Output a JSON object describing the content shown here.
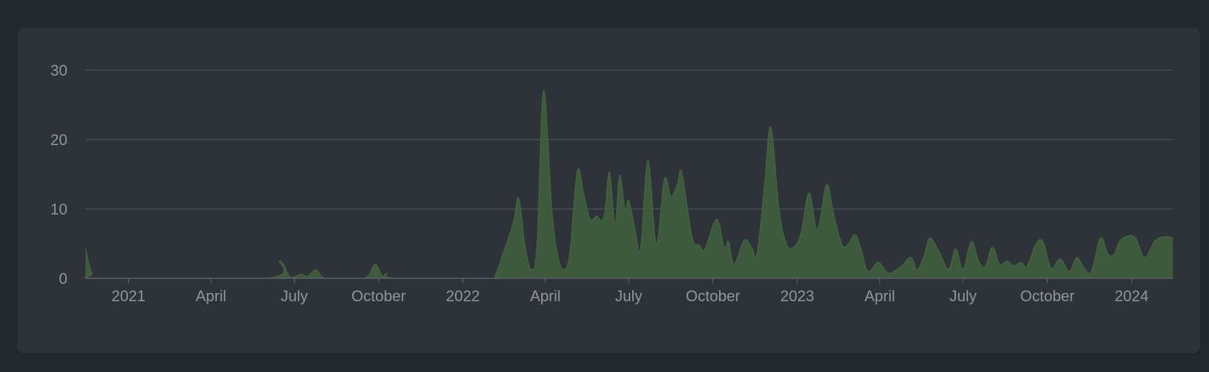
{
  "theme": {
    "page_background": "#22262d",
    "card_background": "#2e333a",
    "area_color": "#3d5a3c",
    "grid_color": "#4a5057",
    "label_color": "#8f969e"
  },
  "chart_data": {
    "type": "area",
    "title": "",
    "xlabel": "",
    "ylabel": "",
    "ylim": [
      0,
      30
    ],
    "xlim": [
      "2020-11-15",
      "2024-02-15"
    ],
    "y_ticks": [
      "0",
      "10",
      "20",
      "30"
    ],
    "x_ticks": [
      {
        "label": "2021",
        "date": "2021-01-01"
      },
      {
        "label": "April",
        "date": "2021-04-01"
      },
      {
        "label": "July",
        "date": "2021-07-01"
      },
      {
        "label": "October",
        "date": "2021-10-01"
      },
      {
        "label": "2022",
        "date": "2022-01-01"
      },
      {
        "label": "April",
        "date": "2022-04-01"
      },
      {
        "label": "July",
        "date": "2022-07-01"
      },
      {
        "label": "October",
        "date": "2022-10-01"
      },
      {
        "label": "2023",
        "date": "2023-01-01"
      },
      {
        "label": "April",
        "date": "2023-04-01"
      },
      {
        "label": "July",
        "date": "2023-07-01"
      },
      {
        "label": "October",
        "date": "2023-10-01"
      },
      {
        "label": "2024",
        "date": "2024-01-01"
      }
    ],
    "grid": true,
    "legend": "none",
    "series": [
      {
        "points": [
          [
            "2020-11-15",
            4.3
          ],
          [
            "2020-11-22",
            0.8
          ],
          [
            "2020-12-01",
            0
          ],
          [
            "2021-06-01",
            0
          ],
          [
            "2021-06-15",
            2.5
          ],
          [
            "2021-06-27",
            0.1
          ],
          [
            "2021-07-08",
            0.6
          ],
          [
            "2021-07-15",
            0.3
          ],
          [
            "2021-07-25",
            1.2
          ],
          [
            "2021-08-05",
            0
          ],
          [
            "2021-09-15",
            0
          ],
          [
            "2021-09-27",
            2.0
          ],
          [
            "2021-10-05",
            0.3
          ],
          [
            "2021-10-10",
            0.7
          ],
          [
            "2021-10-20",
            0
          ],
          [
            "2022-02-01",
            0
          ],
          [
            "2022-02-05",
            0.3
          ],
          [
            "2022-02-15",
            4.0
          ],
          [
            "2022-02-25",
            8.0
          ],
          [
            "2022-03-03",
            11.5
          ],
          [
            "2022-03-10",
            4.5
          ],
          [
            "2022-03-17",
            1.3
          ],
          [
            "2022-03-23",
            5.0
          ],
          [
            "2022-03-30",
            27.0
          ],
          [
            "2022-04-08",
            10.0
          ],
          [
            "2022-04-15",
            3.0
          ],
          [
            "2022-04-22",
            1.3
          ],
          [
            "2022-04-28",
            4.0
          ],
          [
            "2022-05-06",
            15.5
          ],
          [
            "2022-05-13",
            12.0
          ],
          [
            "2022-05-20",
            8.5
          ],
          [
            "2022-05-27",
            9.0
          ],
          [
            "2022-06-01",
            8.3
          ],
          [
            "2022-06-05",
            9.5
          ],
          [
            "2022-06-10",
            15.3
          ],
          [
            "2022-06-16",
            7.8
          ],
          [
            "2022-06-21",
            14.8
          ],
          [
            "2022-06-27",
            10.0
          ],
          [
            "2022-07-01",
            11.2
          ],
          [
            "2022-07-08",
            7.0
          ],
          [
            "2022-07-14",
            4.3
          ],
          [
            "2022-07-22",
            17.0
          ],
          [
            "2022-07-31",
            5.0
          ],
          [
            "2022-08-09",
            14.3
          ],
          [
            "2022-08-16",
            11.8
          ],
          [
            "2022-08-23",
            13.5
          ],
          [
            "2022-08-28",
            15.2
          ],
          [
            "2022-09-08",
            6.0
          ],
          [
            "2022-09-16",
            4.8
          ],
          [
            "2022-09-22",
            4.2
          ],
          [
            "2022-10-05",
            8.5
          ],
          [
            "2022-10-13",
            4.5
          ],
          [
            "2022-10-18",
            5.3
          ],
          [
            "2022-10-24",
            2.0
          ],
          [
            "2022-11-04",
            5.5
          ],
          [
            "2022-11-12",
            4.5
          ],
          [
            "2022-11-18",
            3.5
          ],
          [
            "2022-11-26",
            13.0
          ],
          [
            "2022-12-03",
            21.8
          ],
          [
            "2022-12-12",
            10.0
          ],
          [
            "2022-12-20",
            5.0
          ],
          [
            "2022-12-28",
            4.5
          ],
          [
            "2023-01-05",
            6.5
          ],
          [
            "2023-01-14",
            12.3
          ],
          [
            "2023-01-23",
            7.0
          ],
          [
            "2023-02-02",
            13.5
          ],
          [
            "2023-02-10",
            9.0
          ],
          [
            "2023-02-19",
            4.8
          ],
          [
            "2023-02-26",
            5.0
          ],
          [
            "2023-03-05",
            6.3
          ],
          [
            "2023-03-11",
            4.5
          ],
          [
            "2023-03-19",
            1.0
          ],
          [
            "2023-03-30",
            2.3
          ],
          [
            "2023-04-08",
            1.0
          ],
          [
            "2023-04-14",
            0.8
          ],
          [
            "2023-04-25",
            1.8
          ],
          [
            "2023-05-05",
            3.0
          ],
          [
            "2023-05-12",
            1.2
          ],
          [
            "2023-05-20",
            3.5
          ],
          [
            "2023-05-26",
            5.8
          ],
          [
            "2023-06-06",
            3.5
          ],
          [
            "2023-06-15",
            1.3
          ],
          [
            "2023-06-23",
            4.2
          ],
          [
            "2023-07-01",
            1.3
          ],
          [
            "2023-07-10",
            5.3
          ],
          [
            "2023-07-18",
            2.5
          ],
          [
            "2023-07-25",
            1.7
          ],
          [
            "2023-08-02",
            4.5
          ],
          [
            "2023-08-10",
            2.0
          ],
          [
            "2023-08-18",
            2.5
          ],
          [
            "2023-08-25",
            1.8
          ],
          [
            "2023-09-02",
            2.3
          ],
          [
            "2023-09-09",
            1.8
          ],
          [
            "2023-09-18",
            4.8
          ],
          [
            "2023-09-26",
            5.3
          ],
          [
            "2023-10-05",
            1.5
          ],
          [
            "2023-10-15",
            2.8
          ],
          [
            "2023-10-25",
            1.0
          ],
          [
            "2023-11-02",
            3.0
          ],
          [
            "2023-11-10",
            1.5
          ],
          [
            "2023-11-18",
            1.0
          ],
          [
            "2023-11-28",
            5.8
          ],
          [
            "2023-12-06",
            3.5
          ],
          [
            "2023-12-13",
            3.5
          ],
          [
            "2023-12-20",
            5.5
          ],
          [
            "2024-01-04",
            6.0
          ],
          [
            "2024-01-15",
            3.0
          ],
          [
            "2024-01-27",
            5.5
          ],
          [
            "2024-02-08",
            6.0
          ],
          [
            "2024-02-15",
            5.8
          ]
        ]
      }
    ]
  }
}
